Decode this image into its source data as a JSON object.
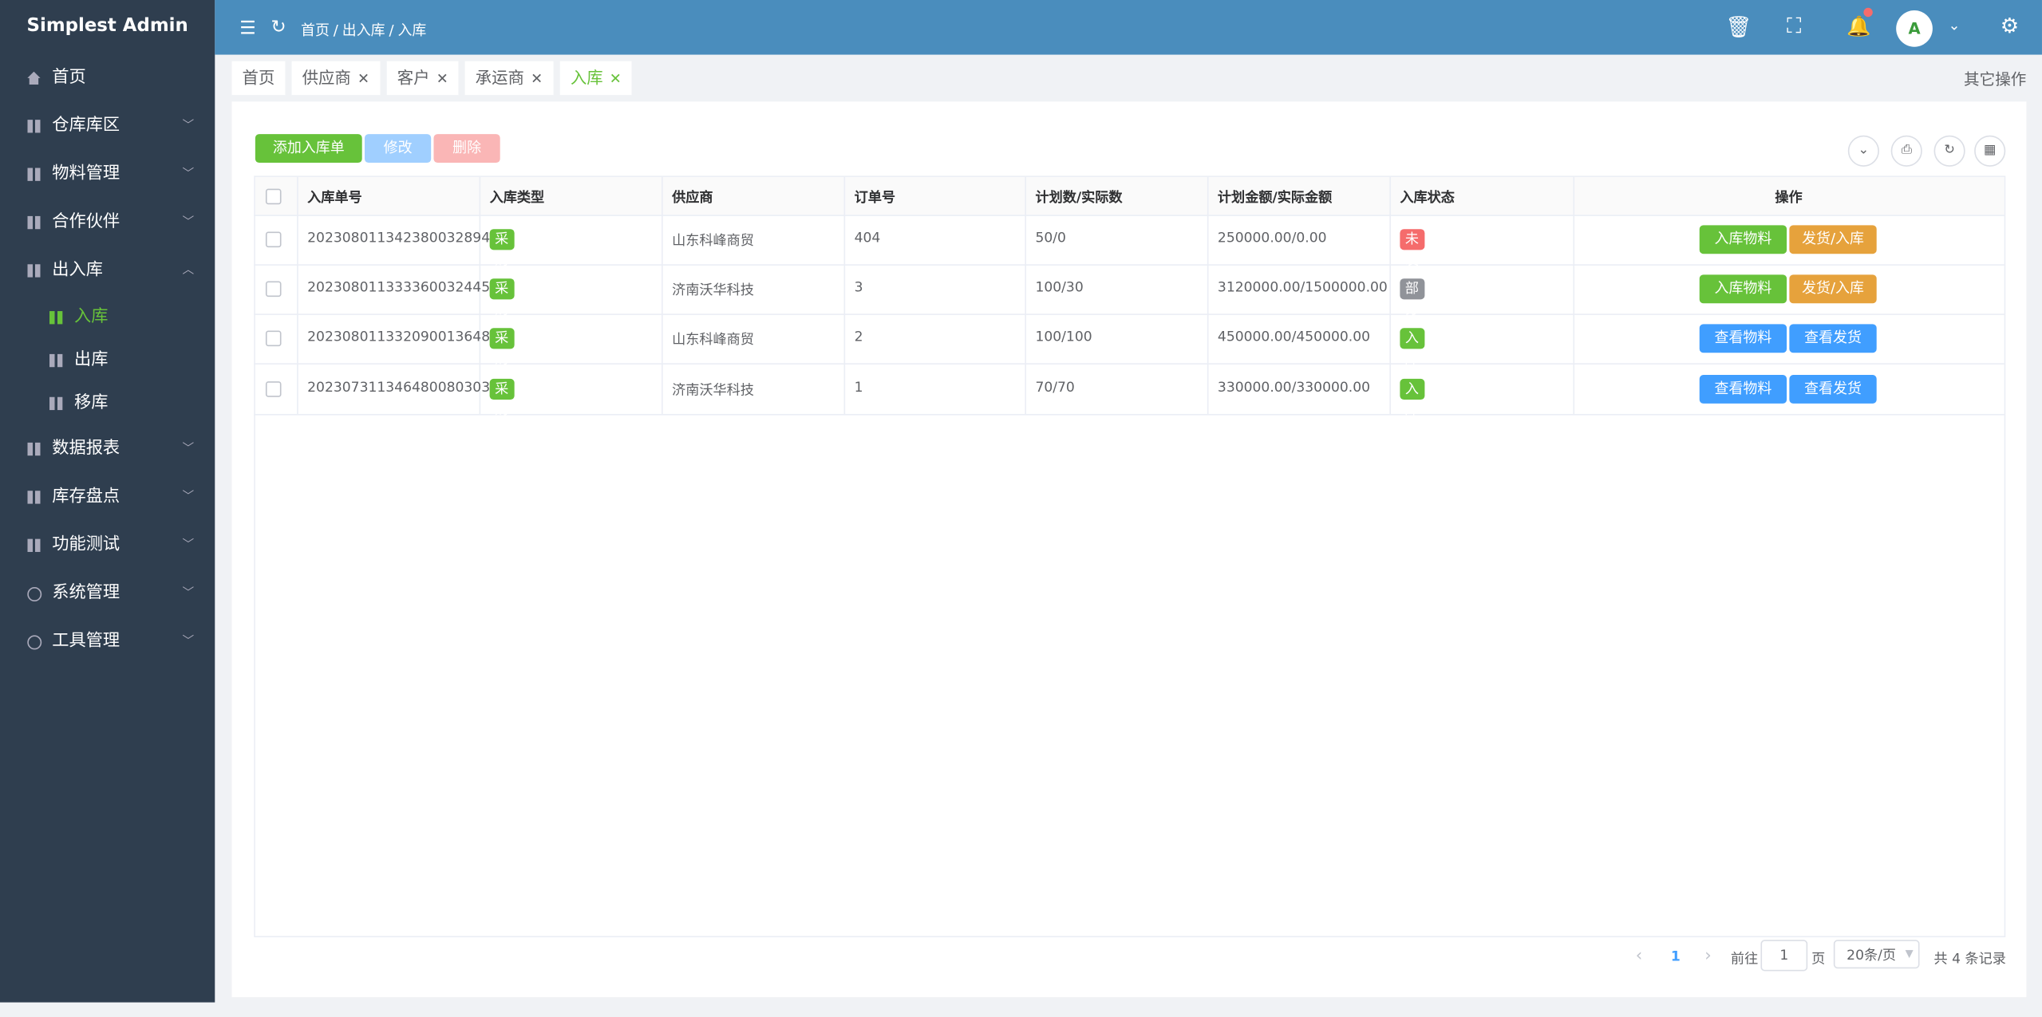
{
  "sidebar": {
    "title": "Simplest Admin",
    "menu": [
      "首页",
      "仓库库区",
      "物料管理",
      "合作伙伴",
      "出入库",
      "数据报表",
      "库存盘点",
      "功能测试",
      "系统管理",
      "工具管理"
    ],
    "submenu": [
      "入库",
      "出库",
      "移库"
    ]
  },
  "header": {
    "breadcrumb": [
      "首页",
      "出入库",
      "入库"
    ]
  },
  "tabs": {
    "items": [
      "首页",
      "供应商",
      "客户",
      "承运商",
      "入库"
    ],
    "other_ops": "其它操作"
  },
  "toolbar": {
    "add": "添加入库单",
    "edit": "修改",
    "delete": "删除"
  },
  "table": {
    "columns": [
      "入库单号",
      "入库类型",
      "供应商",
      "订单号",
      "计划数/实际数",
      "计划金额/实际金额",
      "入库状态",
      "操作"
    ],
    "rows": [
      {
        "id": "202308011342380032894",
        "type": "采购入库",
        "supplier": "山东科峰商贸",
        "order": "404",
        "qty": "50/0",
        "amount": "250000.00/0.00",
        "status": {
          "text": "未发货",
          "color": "#f56c6c"
        },
        "actions": [
          {
            "text": "入库物料",
            "color": "#67c23a"
          },
          {
            "text": "发货/入库",
            "color": "#e6a23c"
          }
        ]
      },
      {
        "id": "202308011333360032445",
        "type": "采购入库",
        "supplier": "济南沃华科技",
        "order": "3",
        "qty": "100/30",
        "amount": "3120000.00/1500000.00",
        "status": {
          "text": "部分入库",
          "color": "#909399"
        },
        "actions": [
          {
            "text": "入库物料",
            "color": "#67c23a"
          },
          {
            "text": "发货/入库",
            "color": "#e6a23c"
          }
        ]
      },
      {
        "id": "202308011332090013648",
        "type": "采购入库",
        "supplier": "山东科峰商贸",
        "order": "2",
        "qty": "100/100",
        "amount": "450000.00/450000.00",
        "status": {
          "text": "入库完成",
          "color": "#67c23a"
        },
        "actions": [
          {
            "text": "查看物料",
            "color": "#409eff"
          },
          {
            "text": "查看发货",
            "color": "#409eff"
          }
        ]
      },
      {
        "id": "202307311346480080303",
        "type": "采购入库",
        "supplier": "济南沃华科技",
        "order": "1",
        "qty": "70/70",
        "amount": "330000.00/330000.00",
        "status": {
          "text": "入库完成",
          "color": "#67c23a"
        },
        "actions": [
          {
            "text": "查看物料",
            "color": "#409eff"
          },
          {
            "text": "查看发货",
            "color": "#409eff"
          }
        ]
      }
    ]
  },
  "pagination": {
    "page": "1",
    "goto": "前往",
    "goto_value": "1",
    "page_unit": "页",
    "page_size": "20条/页",
    "total": "共 4 条记录"
  }
}
